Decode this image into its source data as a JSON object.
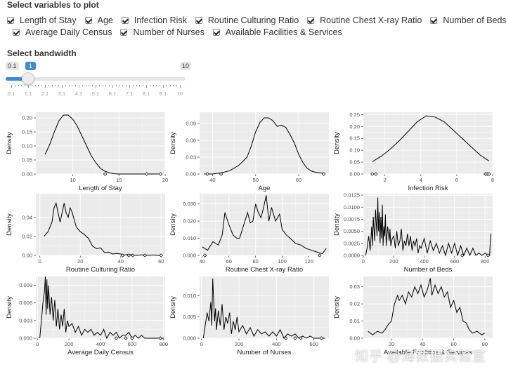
{
  "variables_section": {
    "title": "Select variables to plot",
    "options": [
      {
        "label": "Length of Stay",
        "checked": true
      },
      {
        "label": "Age",
        "checked": true
      },
      {
        "label": "Infection Risk",
        "checked": true
      },
      {
        "label": "Routine Culturing Ratio",
        "checked": true
      },
      {
        "label": "Routine Chest X-ray Ratio",
        "checked": true
      },
      {
        "label": "Number of Beds",
        "checked": true
      },
      {
        "label": "Average Daily Census",
        "checked": true
      },
      {
        "label": "Number of Nurses",
        "checked": true
      },
      {
        "label": "Available Facilities & Services",
        "checked": true
      }
    ]
  },
  "bandwidth_section": {
    "title": "Select bandwidth",
    "min_label": "0.1",
    "max_label": "10",
    "current_label": "1",
    "value": 1,
    "min": 0.1,
    "max": 10,
    "tick_labels": [
      "0.1",
      "1.1",
      "2.1",
      "3.1",
      "4.1",
      "5.1",
      "6.1",
      "7.1",
      "8.1",
      "9.1",
      "10"
    ]
  },
  "colors": {
    "slider_accent": "#428bca",
    "panel_bg": "#ebebeb",
    "grid": "#ffffff"
  },
  "watermark": "知乎 @海数据实验室",
  "chart_data": [
    {
      "type": "line",
      "xlabel": "Length of Stay",
      "ylabel": "Density",
      "xlim": [
        6,
        20
      ],
      "ylim": [
        0,
        0.22
      ],
      "xticks": [
        10,
        15,
        20
      ],
      "yticks": [
        0.0,
        0.05,
        0.1,
        0.15,
        0.2
      ],
      "ytick_labels": [
        "0.00",
        "0.05",
        "0.10",
        "0.15",
        "0.20"
      ],
      "x": [
        7,
        7.5,
        8,
        8.5,
        9,
        9.5,
        10,
        10.5,
        11,
        11.5,
        12,
        12.5,
        13,
        13.5,
        14,
        14.5,
        15,
        16,
        17,
        18,
        19,
        19.5
      ],
      "y": [
        0.07,
        0.105,
        0.15,
        0.19,
        0.21,
        0.21,
        0.195,
        0.17,
        0.135,
        0.1,
        0.065,
        0.04,
        0.02,
        0.01,
        0.004,
        0.001,
        0.0,
        0.0,
        0.0,
        0.0,
        0.0,
        0.0
      ],
      "rug": [
        13.5,
        18.0,
        19.5
      ]
    },
    {
      "type": "line",
      "xlabel": "Age",
      "ylabel": "Density",
      "xlim": [
        37,
        67
      ],
      "ylim": [
        0,
        0.11
      ],
      "xticks": [
        40,
        50,
        60
      ],
      "yticks": [
        0.0,
        0.03,
        0.06,
        0.09
      ],
      "ytick_labels": [
        "0.00",
        "0.03",
        "0.06",
        "0.09"
      ],
      "x": [
        38,
        40,
        42,
        44,
        46,
        47,
        48,
        49,
        50,
        51,
        52,
        53,
        54,
        55,
        56,
        57,
        58,
        59,
        60,
        61,
        62,
        63,
        64,
        65,
        66
      ],
      "y": [
        0.0,
        0.0,
        0.002,
        0.006,
        0.015,
        0.022,
        0.03,
        0.05,
        0.075,
        0.092,
        0.1,
        0.1,
        0.095,
        0.085,
        0.087,
        0.083,
        0.07,
        0.055,
        0.035,
        0.02,
        0.01,
        0.005,
        0.003,
        0.002,
        0.001
      ],
      "rug": [
        38.8,
        42.0,
        65.8
      ]
    },
    {
      "type": "line",
      "xlabel": "Infection Risk",
      "ylabel": "Density",
      "xlim": [
        0.8,
        8
      ],
      "ylim": [
        0,
        0.26
      ],
      "xticks": [
        2,
        4,
        6,
        8
      ],
      "yticks": [
        0.0,
        0.05,
        0.1,
        0.15,
        0.2,
        0.25
      ],
      "ytick_labels": [
        "0.00",
        "0.05",
        "0.10",
        "0.15",
        "0.20",
        "0.25"
      ],
      "x": [
        1.3,
        1.8,
        2.3,
        2.8,
        3.3,
        3.8,
        4.3,
        4.8,
        5.3,
        5.8,
        6.3,
        6.8,
        7.3,
        7.8
      ],
      "y": [
        0.052,
        0.075,
        0.105,
        0.14,
        0.18,
        0.22,
        0.245,
        0.24,
        0.22,
        0.185,
        0.15,
        0.115,
        0.08,
        0.055
      ],
      "rug": [
        1.3,
        1.5,
        7.6,
        7.7,
        7.8
      ]
    },
    {
      "type": "line",
      "xlabel": "Routine Culturing Ratio",
      "ylabel": "Density",
      "xlim": [
        -2,
        62
      ],
      "ylim": [
        0,
        0.065
      ],
      "xticks": [
        0,
        20,
        40,
        60
      ],
      "yticks": [
        0.0,
        0.02,
        0.04
      ],
      "ytick_labels": [
        "0.00",
        "0.02",
        "0.04"
      ],
      "x": [
        2,
        4,
        6,
        7,
        8,
        9,
        10,
        12,
        13,
        14,
        15,
        16,
        18,
        20,
        22,
        24,
        26,
        28,
        30,
        32,
        34,
        36,
        38,
        40,
        42,
        44,
        46,
        48,
        50,
        52,
        54,
        56,
        58,
        60
      ],
      "y": [
        0.02,
        0.025,
        0.035,
        0.05,
        0.055,
        0.045,
        0.035,
        0.055,
        0.045,
        0.04,
        0.05,
        0.045,
        0.03,
        0.025,
        0.022,
        0.018,
        0.01,
        0.007,
        0.008,
        0.003,
        0.0035,
        0.0015,
        0.002,
        0.0015,
        0.0005,
        0.001,
        0.0005,
        0.0,
        0.0005,
        0.0005,
        0.0,
        0.0005,
        0.0,
        0.0
      ],
      "rug": [
        41,
        44,
        46,
        52,
        60
      ]
    },
    {
      "type": "line",
      "xlabel": "Routine Chest X-ray Ratio",
      "ylabel": "Density",
      "xlim": [
        38,
        135
      ],
      "ylim": [
        0,
        0.036
      ],
      "xticks": [
        40,
        60,
        80,
        100,
        120
      ],
      "yticks": [
        0.0,
        0.01,
        0.02,
        0.03
      ],
      "ytick_labels": [
        "0.000",
        "0.010",
        "0.020",
        "0.030"
      ],
      "x": [
        40,
        44,
        48,
        52,
        55,
        57,
        60,
        63,
        66,
        68,
        70,
        72,
        74,
        76,
        78,
        80,
        82,
        84,
        86,
        88,
        90,
        92,
        95,
        98,
        100,
        103,
        106,
        110,
        114,
        118,
        122,
        126,
        130,
        133
      ],
      "y": [
        0.005,
        0.003,
        0.008,
        0.006,
        0.012,
        0.025,
        0.018,
        0.012,
        0.01,
        0.01,
        0.015,
        0.02,
        0.025,
        0.019,
        0.02,
        0.03,
        0.025,
        0.022,
        0.028,
        0.035,
        0.02,
        0.028,
        0.02,
        0.024,
        0.015,
        0.012,
        0.01,
        0.007,
        0.006,
        0.004,
        0.003,
        0.002,
        0.001,
        0.004
      ],
      "rug": [
        42,
        128
      ]
    },
    {
      "type": "line",
      "xlabel": "Number of Beds",
      "ylabel": "Density",
      "xlim": [
        0,
        850
      ],
      "ylim": [
        0,
        0.0128
      ],
      "xticks": [
        0,
        200,
        400,
        600,
        800
      ],
      "yticks": [
        0.0,
        0.0025,
        0.005,
        0.0075,
        0.01,
        0.0125
      ],
      "ytick_labels": [
        "0.0000",
        "0.0025",
        "0.0050",
        "0.0075",
        "0.0100",
        "0.0125"
      ],
      "x": [
        15,
        25,
        35,
        45,
        55,
        60,
        65,
        75,
        80,
        90,
        95,
        100,
        105,
        110,
        115,
        120,
        125,
        130,
        135,
        140,
        145,
        150,
        160,
        170,
        175,
        180,
        190,
        200,
        210,
        220,
        230,
        240,
        250,
        260,
        270,
        280,
        290,
        300,
        310,
        320,
        330,
        340,
        350,
        360,
        370,
        380,
        400,
        420,
        440,
        460,
        480,
        500,
        520,
        540,
        560,
        580,
        600,
        620,
        640,
        660,
        680,
        700,
        720,
        740,
        760,
        780,
        800,
        820,
        830,
        835,
        840
      ],
      "y": [
        0.0,
        0.0015,
        0.004,
        0.001,
        0.006,
        0.002,
        0.008,
        0.003,
        0.0095,
        0.004,
        0.012,
        0.005,
        0.009,
        0.0025,
        0.008,
        0.0035,
        0.0105,
        0.002,
        0.006,
        0.004,
        0.0085,
        0.002,
        0.006,
        0.003,
        0.0055,
        0.002,
        0.0035,
        0.004,
        0.0015,
        0.005,
        0.002,
        0.003,
        0.0055,
        0.001,
        0.003,
        0.002,
        0.0045,
        0.002,
        0.004,
        0.001,
        0.003,
        0.002,
        0.0035,
        0.0005,
        0.002,
        0.0015,
        0.0035,
        0.0005,
        0.003,
        0.001,
        0.0025,
        0.0005,
        0.002,
        0.0,
        0.0025,
        0.0005,
        0.0025,
        0.0,
        0.002,
        0.0,
        0.0015,
        0.0,
        0.0015,
        0.0,
        0.0005,
        0.0,
        0.0005,
        0.0,
        0.0,
        0.0035,
        0.0045
      ],
      "rug": [
        650,
        820
      ]
    },
    {
      "type": "line",
      "xlabel": "Average Daily Census",
      "ylabel": "Density",
      "xlim": [
        -10,
        810
      ],
      "ylim": [
        0,
        0.0105
      ],
      "xticks": [
        0,
        200,
        400,
        600,
        800
      ],
      "yticks": [
        0.0,
        0.003,
        0.006,
        0.009
      ],
      "ytick_labels": [
        "0.000",
        "0.003",
        "0.006",
        "0.009"
      ],
      "x": [
        15,
        25,
        35,
        45,
        50,
        55,
        60,
        65,
        70,
        80,
        90,
        100,
        110,
        120,
        130,
        140,
        150,
        160,
        170,
        180,
        190,
        200,
        220,
        240,
        260,
        280,
        300,
        320,
        340,
        360,
        380,
        400,
        420,
        440,
        460,
        480,
        500,
        520,
        540,
        560,
        580,
        600,
        620,
        640,
        660,
        680,
        700,
        720,
        740,
        760,
        780,
        800
      ],
      "y": [
        0.0,
        0.003,
        0.006,
        0.008,
        0.0105,
        0.004,
        0.01,
        0.005,
        0.009,
        0.004,
        0.007,
        0.003,
        0.0065,
        0.002,
        0.005,
        0.0015,
        0.004,
        0.002,
        0.005,
        0.001,
        0.003,
        0.002,
        0.0025,
        0.001,
        0.002,
        0.0005,
        0.0015,
        0.001,
        0.0015,
        0.0005,
        0.001,
        0.0005,
        0.0015,
        0.0,
        0.001,
        0.0005,
        0.001,
        0.0,
        0.0005,
        0.0005,
        0.001,
        0.0,
        0.0005,
        0.0,
        0.0005,
        0.0,
        0.0,
        0.0,
        0.0,
        0.0,
        0.0,
        0.0
      ],
      "rug": [
        500,
        560,
        600,
        780
      ]
    },
    {
      "type": "line",
      "xlabel": "Number of Nurses",
      "ylabel": "Density",
      "xlim": [
        -10,
        680
      ],
      "ylim": [
        0,
        0.0145
      ],
      "xticks": [
        0,
        200,
        400,
        600
      ],
      "yticks": [
        0.0,
        0.005,
        0.01
      ],
      "ytick_labels": [
        "0.000",
        "0.005",
        "0.010"
      ],
      "x": [
        10,
        20,
        30,
        40,
        50,
        55,
        60,
        70,
        75,
        80,
        90,
        100,
        110,
        120,
        130,
        140,
        150,
        160,
        170,
        180,
        190,
        200,
        220,
        240,
        260,
        280,
        300,
        320,
        340,
        360,
        380,
        400,
        420,
        440,
        460,
        480,
        500,
        520,
        540,
        560,
        580,
        600,
        620,
        640,
        660
      ],
      "y": [
        0.0,
        0.003,
        0.006,
        0.004,
        0.0085,
        0.003,
        0.014,
        0.004,
        0.007,
        0.002,
        0.0065,
        0.003,
        0.008,
        0.002,
        0.005,
        0.0035,
        0.006,
        0.001,
        0.004,
        0.002,
        0.005,
        0.0015,
        0.003,
        0.001,
        0.0025,
        0.0005,
        0.002,
        0.001,
        0.0015,
        0.0005,
        0.0015,
        0.0005,
        0.002,
        0.0,
        0.001,
        0.0005,
        0.001,
        0.0,
        0.0005,
        0.0,
        0.0005,
        0.0,
        0.0,
        0.0,
        0.0
      ],
      "rug": [
        450,
        500,
        530,
        640
      ]
    },
    {
      "type": "line",
      "xlabel": "Available Facilities & Services",
      "ylabel": "Density",
      "xlim": [
        2,
        85
      ],
      "ylim": [
        0,
        0.036
      ],
      "xticks": [
        20,
        40,
        60,
        80
      ],
      "yticks": [
        0.0,
        0.01,
        0.02,
        0.03
      ],
      "ytick_labels": [
        "0.00",
        "0.01",
        "0.02",
        "0.03"
      ],
      "x": [
        5,
        8,
        11,
        14,
        16,
        18,
        20,
        22,
        24,
        25,
        27,
        29,
        31,
        33,
        35,
        37,
        39,
        41,
        43,
        45,
        46,
        48,
        50,
        52,
        54,
        56,
        58,
        60,
        62,
        64,
        66,
        68,
        70,
        72,
        75,
        78,
        80
      ],
      "y": [
        0.004,
        0.002,
        0.004,
        0.003,
        0.005,
        0.008,
        0.01,
        0.02,
        0.025,
        0.022,
        0.025,
        0.02,
        0.027,
        0.024,
        0.03,
        0.026,
        0.031,
        0.024,
        0.028,
        0.035,
        0.025,
        0.031,
        0.026,
        0.03,
        0.024,
        0.027,
        0.018,
        0.022,
        0.015,
        0.018,
        0.01,
        0.009,
        0.005,
        0.003,
        0.004,
        0.002,
        0.003
      ],
      "rug": []
    }
  ]
}
